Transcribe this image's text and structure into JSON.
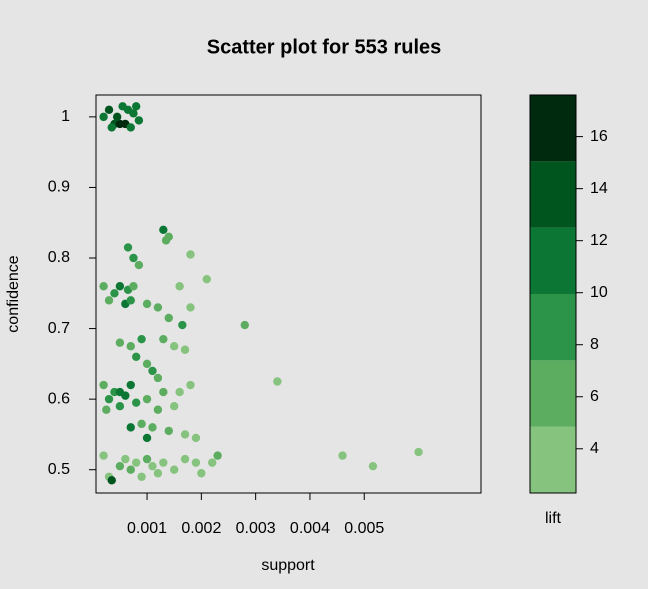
{
  "chart_data": {
    "type": "scatter",
    "title": "Scatter plot for 553 rules",
    "x_label": "support",
    "y_label": "confidence",
    "xlim": [
      6e-05,
      0.00715
    ],
    "ylim": [
      0.467,
      1.031
    ],
    "xticks": [
      0.001,
      0.002,
      0.003,
      0.004,
      0.005
    ],
    "yticks": [
      0.5,
      0.6,
      0.7,
      0.8,
      0.9,
      1
    ],
    "series": [
      {
        "x": [
          0.0002,
          0.0003,
          0.0004,
          0.0005,
          0.0006,
          0.00055,
          0.00065,
          0.00075,
          0.00085,
          0.00035,
          0.00045,
          0.0007,
          0.0008,
          0.00065,
          0.00075,
          0.00085,
          0.0013,
          0.0014,
          0.00135,
          0.0018,
          0.0021,
          0.0002,
          0.0003,
          0.0004,
          0.0005,
          0.0006,
          0.00065,
          0.0007,
          0.00075,
          0.001,
          0.0012,
          0.0016,
          0.0018,
          0.0014,
          0.00165,
          0.0028,
          0.0005,
          0.0007,
          0.0009,
          0.0008,
          0.001,
          0.0013,
          0.0015,
          0.0017,
          0.0012,
          0.0011,
          0.0034,
          0.0002,
          0.0003,
          0.0004,
          0.0005,
          0.0006,
          0.0007,
          0.0008,
          0.00025,
          0.0005,
          0.001,
          0.0013,
          0.0016,
          0.0018,
          0.0015,
          0.0012,
          0.0007,
          0.0009,
          0.001,
          0.0011,
          0.0014,
          0.0017,
          0.0019,
          0.0002,
          0.0003,
          0.00035,
          0.0005,
          0.0006,
          0.0007,
          0.0008,
          0.0009,
          0.001,
          0.0011,
          0.0012,
          0.0013,
          0.0015,
          0.0017,
          0.0019,
          0.002,
          0.0022,
          0.0023,
          0.0046,
          0.00516,
          0.006
        ],
        "y": [
          1.0,
          1.01,
          0.99,
          0.99,
          0.99,
          1.015,
          1.01,
          1.005,
          0.995,
          0.985,
          1.0,
          0.985,
          1.015,
          0.815,
          0.8,
          0.79,
          0.84,
          0.83,
          0.825,
          0.805,
          0.77,
          0.76,
          0.74,
          0.75,
          0.76,
          0.735,
          0.755,
          0.74,
          0.76,
          0.735,
          0.73,
          0.76,
          0.73,
          0.715,
          0.705,
          0.705,
          0.68,
          0.675,
          0.685,
          0.66,
          0.65,
          0.685,
          0.675,
          0.67,
          0.63,
          0.64,
          0.625,
          0.62,
          0.6,
          0.61,
          0.61,
          0.605,
          0.62,
          0.595,
          0.585,
          0.59,
          0.6,
          0.61,
          0.61,
          0.62,
          0.59,
          0.585,
          0.56,
          0.565,
          0.545,
          0.56,
          0.555,
          0.55,
          0.545,
          0.52,
          0.49,
          0.485,
          0.505,
          0.515,
          0.5,
          0.51,
          0.49,
          0.515,
          0.505,
          0.495,
          0.51,
          0.5,
          0.515,
          0.51,
          0.495,
          0.51,
          0.52,
          0.52,
          0.505,
          0.525
        ],
        "lift": [
          12,
          13,
          15,
          17,
          17,
          11,
          12,
          11,
          10,
          12,
          13,
          12,
          11,
          9,
          8,
          7,
          10,
          6,
          5,
          4,
          4,
          5,
          6,
          9,
          10,
          11,
          9,
          8,
          7,
          6,
          5,
          4,
          4,
          5,
          9,
          5,
          6,
          7,
          8,
          9,
          6,
          5,
          4,
          4,
          7,
          8,
          4,
          7,
          8,
          9,
          11,
          10,
          12,
          9,
          7,
          8,
          6,
          5,
          4,
          4,
          4,
          5,
          11,
          7,
          12,
          5,
          5,
          4,
          4,
          4,
          4,
          15,
          5,
          4,
          5,
          4,
          4,
          5,
          4,
          4,
          4,
          4,
          4,
          4,
          4,
          4,
          5,
          4,
          4,
          4
        ]
      }
    ],
    "colorbar": {
      "label": "lift",
      "clim": [
        2.3,
        17.6
      ],
      "colors": [
        "#86c37e",
        "#5cad60",
        "#2b9448",
        "#0c7734",
        "#00541e",
        "#002a0e"
      ],
      "ticks": [
        4,
        6,
        8,
        10,
        12,
        14,
        16
      ]
    }
  }
}
